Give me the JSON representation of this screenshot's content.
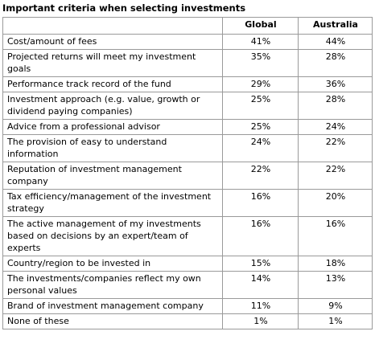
{
  "title": "Important criteria when selecting investments",
  "table": {
    "columns": [
      "Global",
      "Australia"
    ],
    "rows": [
      [
        "Cost/amount of fees",
        "41%",
        "44%"
      ],
      [
        "Projected returns will meet my investment goals",
        "35%",
        "28%"
      ],
      [
        "Performance track record of the fund",
        "29%",
        "36%"
      ],
      [
        "Investment approach (e.g. value, growth or dividend paying companies)",
        "25%",
        "28%"
      ],
      [
        "Advice from a professional advisor",
        "25%",
        "24%"
      ],
      [
        "The provision of easy to understand information",
        "24%",
        "22%"
      ],
      [
        "Reputation of investment management company",
        "22%",
        "22%"
      ],
      [
        "Tax efficiency/management of the investment strategy",
        "16%",
        "20%"
      ],
      [
        "The active management of my investments based on decisions by an expert/team of experts",
        "16%",
        "16%"
      ],
      [
        "Country/region to be invested in",
        "15%",
        "18%"
      ],
      [
        "The investments/companies reflect my own personal values",
        "14%",
        "13%"
      ],
      [
        "Brand of investment management company",
        "11%",
        "9%"
      ],
      [
        "None of these",
        "1%",
        "1%"
      ]
    ]
  }
}
